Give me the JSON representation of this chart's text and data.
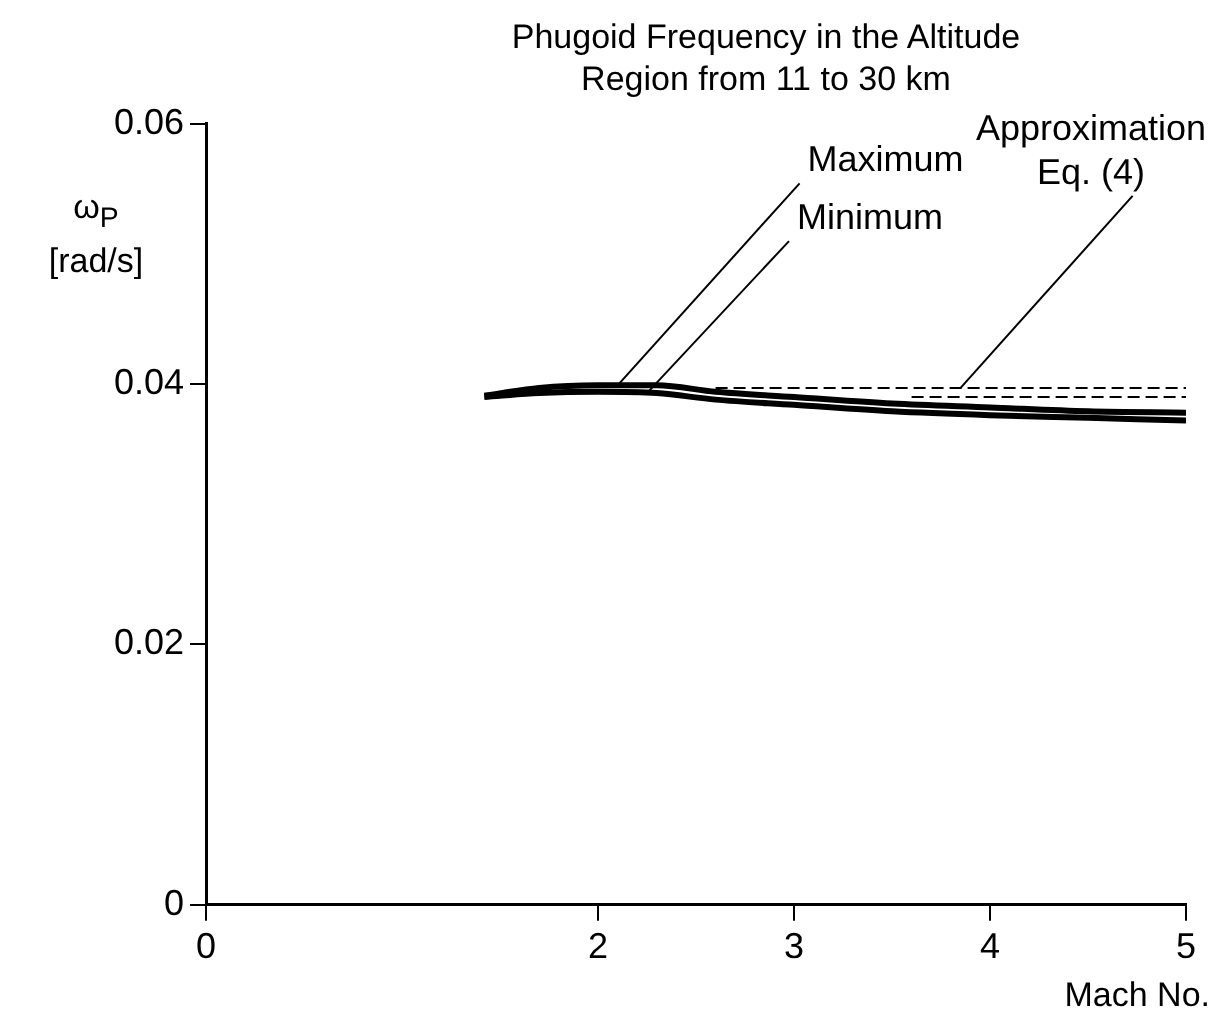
{
  "chart_data": {
    "type": "line",
    "title": "Phugoid Frequency in the Altitude Region from 11 to 30 km",
    "xlabel": "Mach No.",
    "ylabel": "ω$_{P}$ [rad/s]",
    "xlim": [
      0,
      5
    ],
    "xticks": [
      0,
      2,
      3,
      4,
      5
    ],
    "ylim": [
      0,
      0.06
    ],
    "yticks": [
      0,
      0.02,
      0.04,
      0.06
    ],
    "grid": false,
    "legend": false,
    "marker": "none",
    "series": [
      {
        "color": "#000000",
        "x": [
          1.42,
          1.7,
          2.0,
          2.3,
          2.6,
          3.0,
          3.5,
          4.0,
          4.5,
          5.0
        ],
        "values": [
          0.0391,
          0.0397,
          0.0399,
          0.0399,
          0.0394,
          0.039,
          0.0385,
          0.0382,
          0.0379,
          0.0378
        ]
      },
      {
        "color": "#000000",
        "x": [
          1.42,
          1.7,
          2.0,
          2.3,
          2.6,
          3.0,
          3.5,
          4.0,
          4.5,
          5.0
        ],
        "values": [
          0.039,
          0.0393,
          0.0394,
          0.0393,
          0.0388,
          0.0384,
          0.0379,
          0.0376,
          0.0374,
          0.0372
        ]
      },
      {
        "color": "#000000",
        "line_style": "dashed",
        "x": [
          2.6,
          5.0
        ],
        "values": [
          0.0397,
          0.0397
        ]
      },
      {
        "color": "#000000",
        "line_style": "dashed",
        "x": [
          3.6,
          5.0
        ],
        "values": [
          0.039,
          0.039
        ]
      }
    ],
    "annotations": [
      {
        "text": "Maximum",
        "x": 2.1,
        "y": 0.0399
      },
      {
        "text": "Minimum",
        "x": 2.25,
        "y": 0.0393
      },
      {
        "text": "Approximation Eq. (4)",
        "x": 3.85,
        "y": 0.0397
      }
    ]
  }
}
